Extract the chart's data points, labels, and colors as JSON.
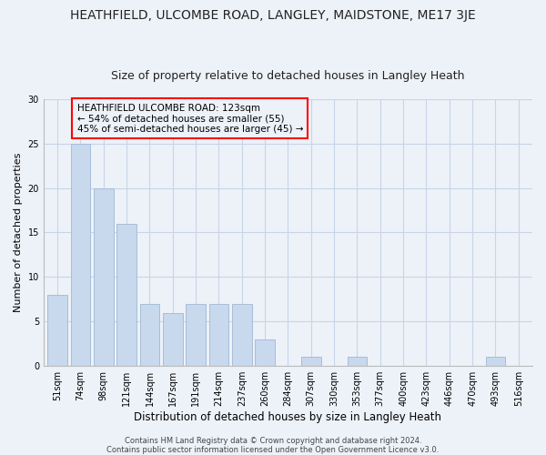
{
  "title": "HEATHFIELD, ULCOMBE ROAD, LANGLEY, MAIDSTONE, ME17 3JE",
  "subtitle": "Size of property relative to detached houses in Langley Heath",
  "xlabel": "Distribution of detached houses by size in Langley Heath",
  "ylabel": "Number of detached properties",
  "categories": [
    "51sqm",
    "74sqm",
    "98sqm",
    "121sqm",
    "144sqm",
    "167sqm",
    "191sqm",
    "214sqm",
    "237sqm",
    "260sqm",
    "284sqm",
    "307sqm",
    "330sqm",
    "353sqm",
    "377sqm",
    "400sqm",
    "423sqm",
    "446sqm",
    "470sqm",
    "493sqm",
    "516sqm"
  ],
  "values": [
    8,
    25,
    20,
    16,
    7,
    6,
    7,
    7,
    7,
    3,
    0,
    1,
    0,
    1,
    0,
    0,
    0,
    0,
    0,
    1,
    0
  ],
  "bar_color": "#c8d8ed",
  "bar_edge_color": "#a8bdd8",
  "annotation_title": "HEATHFIELD ULCOMBE ROAD: 123sqm",
  "annotation_line2": "← 54% of detached houses are smaller (55)",
  "annotation_line3": "45% of semi-detached houses are larger (45) →",
  "footer1": "Contains HM Land Registry data © Crown copyright and database right 2024.",
  "footer2": "Contains public sector information licensed under the Open Government Licence v3.0.",
  "ylim": [
    0,
    30
  ],
  "grid_color": "#c8d4e8",
  "background_color": "#edf2f9",
  "title_fontsize": 10,
  "subtitle_fontsize": 9,
  "tick_fontsize": 7,
  "ylabel_fontsize": 8,
  "xlabel_fontsize": 8.5,
  "footer_fontsize": 6
}
